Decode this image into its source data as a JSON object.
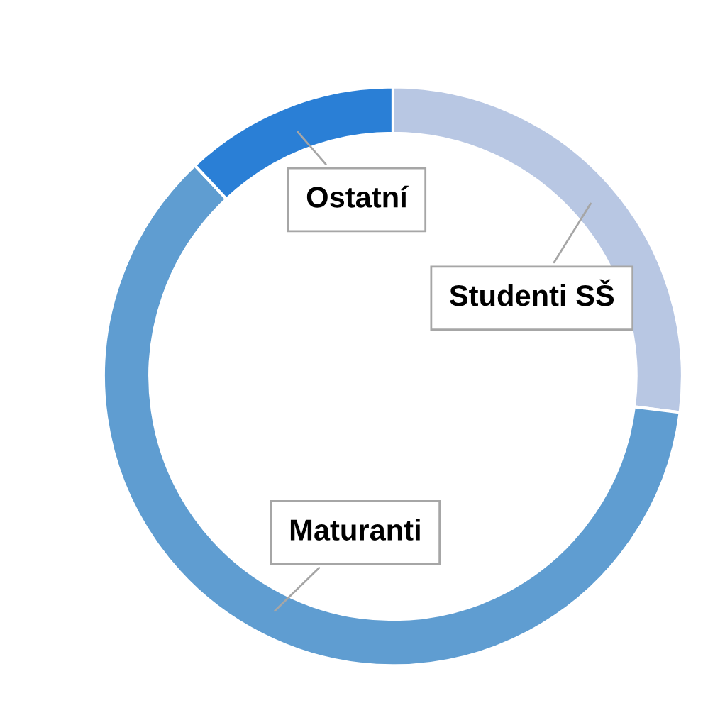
{
  "chart_data": {
    "type": "donut",
    "categories": [
      "Studenti SŠ",
      "Maturanti",
      "Ostatní"
    ],
    "values": [
      27,
      61,
      12
    ],
    "colors": [
      "#b8c7e3",
      "#5f9dd1",
      "#2a7fd6"
    ],
    "legend": false
  }
}
